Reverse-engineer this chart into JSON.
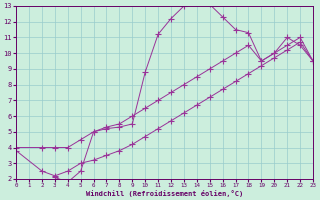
{
  "xlabel": "Windchill (Refroidissement éolien,°C)",
  "background_color": "#cceedd",
  "line_color": "#993399",
  "grid_color": "#99cccc",
  "xmin": 0,
  "xmax": 23,
  "ymin": 2,
  "ymax": 13,
  "line1_x": [
    0,
    2,
    3,
    4,
    5,
    6,
    7,
    8,
    9,
    10,
    11,
    12,
    13,
    14,
    15,
    16,
    17,
    18,
    19,
    20,
    21,
    22,
    23
  ],
  "line1_y": [
    4,
    4,
    4,
    4,
    4.5,
    5.0,
    5.3,
    5.5,
    6.0,
    6.5,
    7.0,
    7.5,
    8.0,
    8.5,
    9.0,
    9.5,
    10.0,
    10.5,
    9.5,
    10.0,
    10.5,
    11.0,
    9.5
  ],
  "line2_x": [
    3,
    4,
    5,
    6,
    7,
    8,
    9,
    10,
    11,
    12,
    13,
    14,
    15,
    16,
    17,
    18,
    19,
    20,
    21,
    22,
    23
  ],
  "line2_y": [
    2.1,
    1.8,
    2.5,
    5.0,
    5.2,
    5.3,
    5.5,
    8.8,
    11.2,
    12.2,
    13.0,
    13.2,
    13.1,
    12.3,
    11.5,
    11.3,
    9.5,
    10.0,
    11.0,
    10.5,
    9.5
  ],
  "line3_x": [
    0,
    2,
    3,
    4,
    5,
    6,
    7,
    8,
    9,
    10,
    11,
    12,
    13,
    14,
    15,
    16,
    17,
    18,
    19,
    20,
    21,
    22,
    23
  ],
  "line3_y": [
    3.8,
    2.5,
    2.2,
    2.5,
    3.0,
    3.2,
    3.5,
    3.8,
    4.2,
    4.7,
    5.2,
    5.7,
    6.2,
    6.7,
    7.2,
    7.7,
    8.2,
    8.7,
    9.2,
    9.7,
    10.2,
    10.7,
    9.5
  ]
}
